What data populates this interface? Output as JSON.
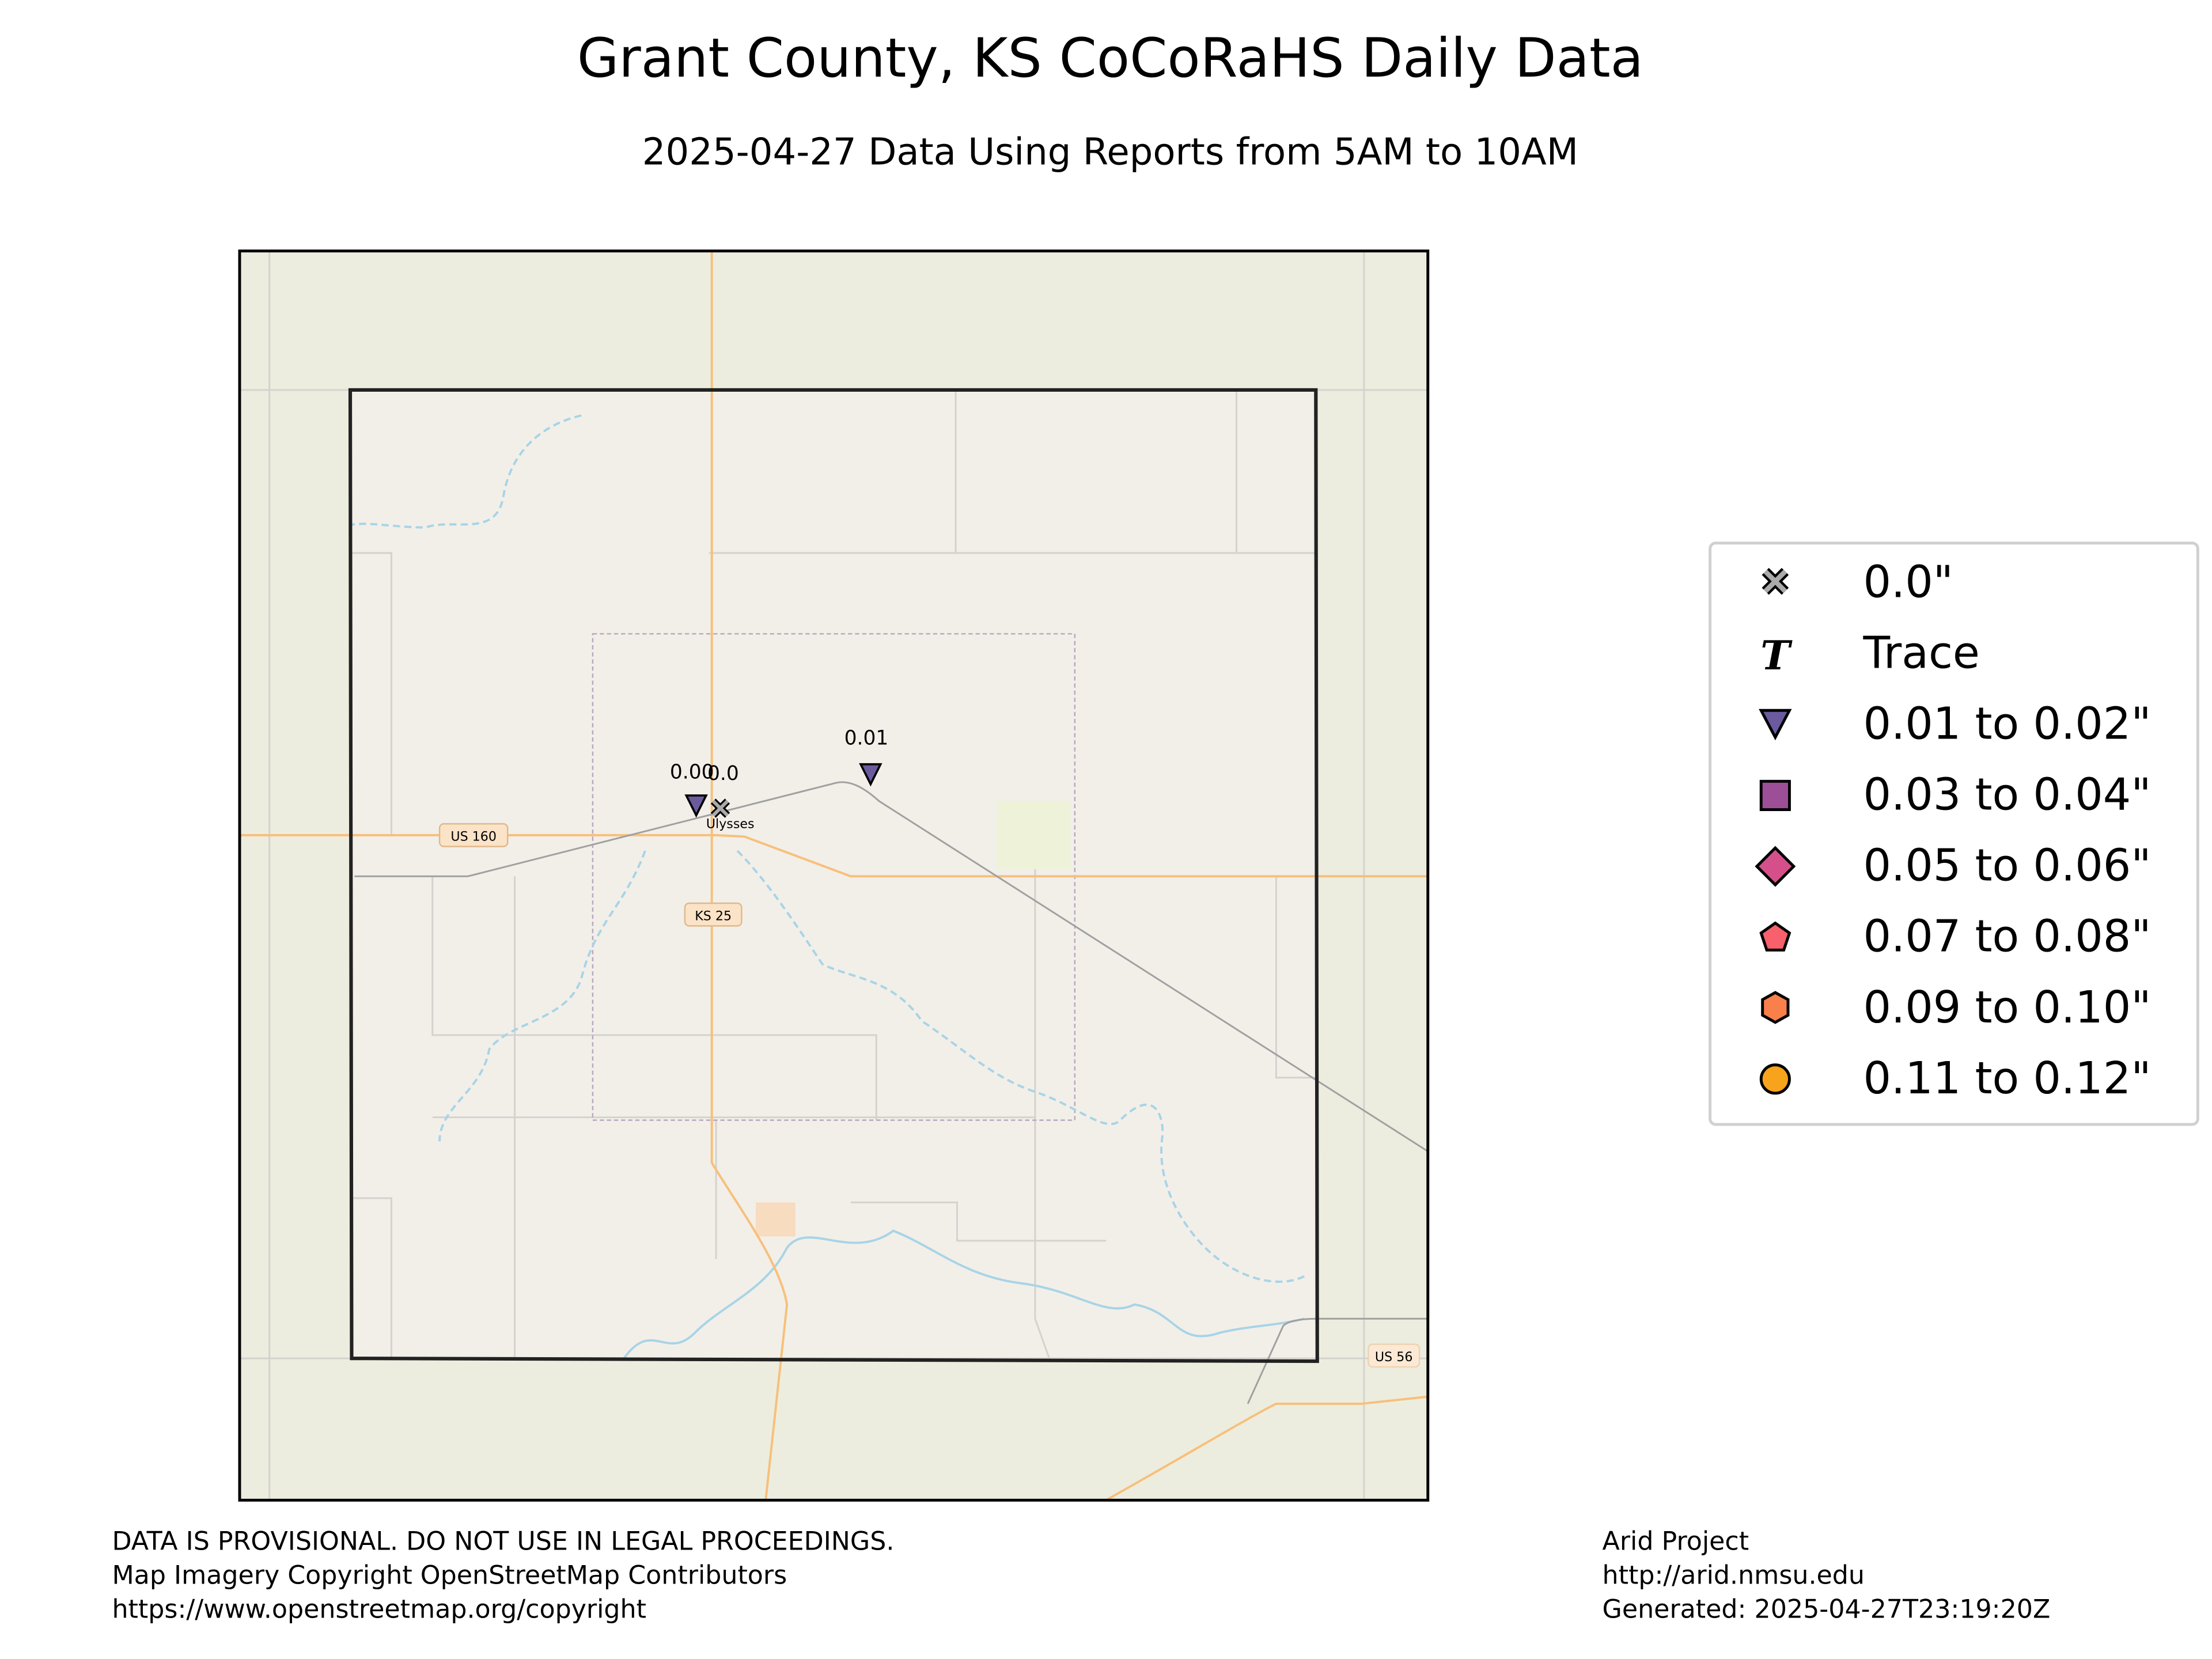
{
  "header": {
    "title": "Grant County, KS CoCoRaHS Daily Data",
    "subtitle": "2025-04-27 Data Using Reports from 5AM to 10AM"
  },
  "map": {
    "labels": [
      "US 160",
      "KS 25",
      "Ulysses",
      "US 56"
    ],
    "stations": [
      "0.00",
      "0.0",
      "0.01"
    ]
  },
  "legend": {
    "items": [
      "0.0\"",
      "Trace",
      "0.01 to 0.02\"",
      "0.03 to 0.04\"",
      "0.05 to 0.06\"",
      "0.07 to 0.08\"",
      "0.09 to 0.10\"",
      "0.11 to 0.12\""
    ]
  },
  "footer": {
    "left": [
      "DATA IS PROVISIONAL. DO NOT USE IN LEGAL PROCEEDINGS.",
      "Map Imagery Copyright OpenStreetMap Contributors",
      "https://www.openstreetmap.org/copyright"
    ],
    "right": [
      "Arid Project",
      "http://arid.nmsu.edu",
      "Generated: 2025-04-27T23:19:20Z"
    ]
  }
}
